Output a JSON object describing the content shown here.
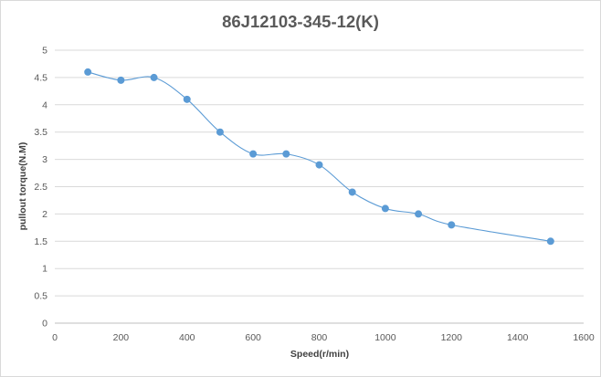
{
  "chart_data": {
    "type": "line",
    "title": "86J12103-345-12(K)",
    "xlabel": "Speed(r/min)",
    "ylabel": "pullout torque(N.M)",
    "xlim": [
      0,
      1600
    ],
    "ylim": [
      0,
      5
    ],
    "x_ticks": [
      "0",
      "200",
      "400",
      "600",
      "800",
      "1000",
      "1200",
      "1400",
      "1600"
    ],
    "y_ticks": [
      "0",
      "0.5",
      "1",
      "1.5",
      "2",
      "2.5",
      "3",
      "3.5",
      "4",
      "4.5",
      "5"
    ],
    "grid": true,
    "smooth": true,
    "series": [
      {
        "color": "#5b9bd5",
        "points": [
          {
            "x": 100,
            "y": 4.6
          },
          {
            "x": 200,
            "y": 4.45
          },
          {
            "x": 300,
            "y": 4.5
          },
          {
            "x": 400,
            "y": 4.1
          },
          {
            "x": 500,
            "y": 3.5
          },
          {
            "x": 600,
            "y": 3.1
          },
          {
            "x": 700,
            "y": 3.1
          },
          {
            "x": 800,
            "y": 2.9
          },
          {
            "x": 900,
            "y": 2.4
          },
          {
            "x": 1000,
            "y": 2.1
          },
          {
            "x": 1100,
            "y": 2.0
          },
          {
            "x": 1200,
            "y": 1.8
          },
          {
            "x": 1500,
            "y": 1.5
          }
        ]
      }
    ]
  }
}
